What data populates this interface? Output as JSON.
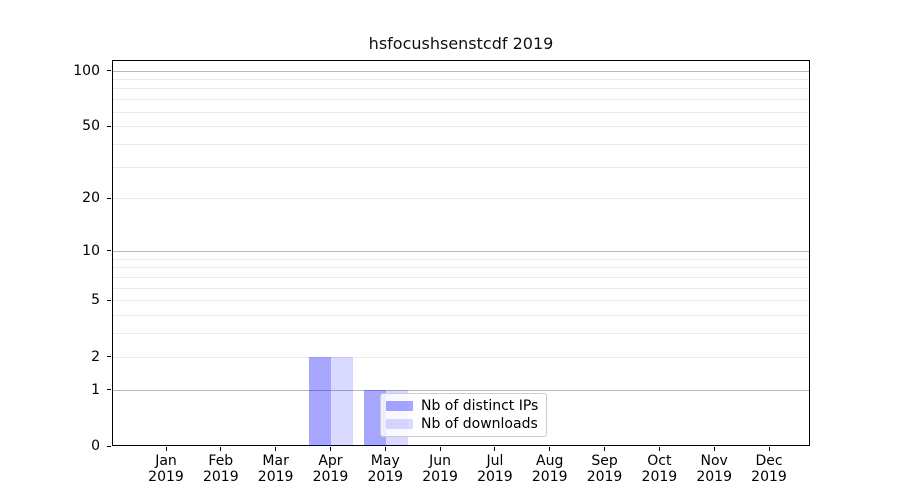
{
  "chart_data": {
    "type": "bar",
    "title": "hsfocushsenstcdf 2019",
    "categories": [
      "Jan",
      "Feb",
      "Mar",
      "Apr",
      "May",
      "Jun",
      "Jul",
      "Aug",
      "Sep",
      "Oct",
      "Nov",
      "Dec"
    ],
    "x_tick_year": "2019",
    "series": [
      {
        "name": "Nb of distinct IPs",
        "color": "rgba(0,0,255,0.35)",
        "values": [
          0,
          0,
          0,
          2,
          1,
          0,
          0,
          0,
          0,
          0,
          0,
          0
        ]
      },
      {
        "name": "Nb of downloads",
        "color": "rgba(0,0,255,0.15)",
        "values": [
          0,
          0,
          0,
          2,
          1,
          0,
          0,
          0,
          0,
          0,
          0,
          0
        ]
      }
    ],
    "yscale": "log1p",
    "ylim": [
      0,
      115
    ],
    "y_tick_values": [
      0,
      1,
      2,
      5,
      10,
      20,
      50,
      100
    ],
    "y_tick_labels": [
      "0",
      "1",
      "2",
      "5",
      "10",
      "20",
      "50",
      "100"
    ],
    "y_major_gridlines": [
      1,
      10,
      100
    ],
    "y_minor_gridlines": [
      2,
      3,
      4,
      5,
      6,
      7,
      8,
      9,
      20,
      30,
      40,
      50,
      60,
      70,
      80,
      90
    ],
    "grid": "on",
    "xlabel": "",
    "ylabel": "",
    "legend": {
      "position": "lower-center-left",
      "entries": [
        "Nb of distinct IPs",
        "Nb of downloads"
      ]
    },
    "colors": {
      "background": "#ffffff",
      "axis": "#000000",
      "major_grid": "#b8b8b8",
      "minor_grid": "#ebebeb",
      "text": "#000000",
      "legend_border": "#cccccc"
    }
  }
}
